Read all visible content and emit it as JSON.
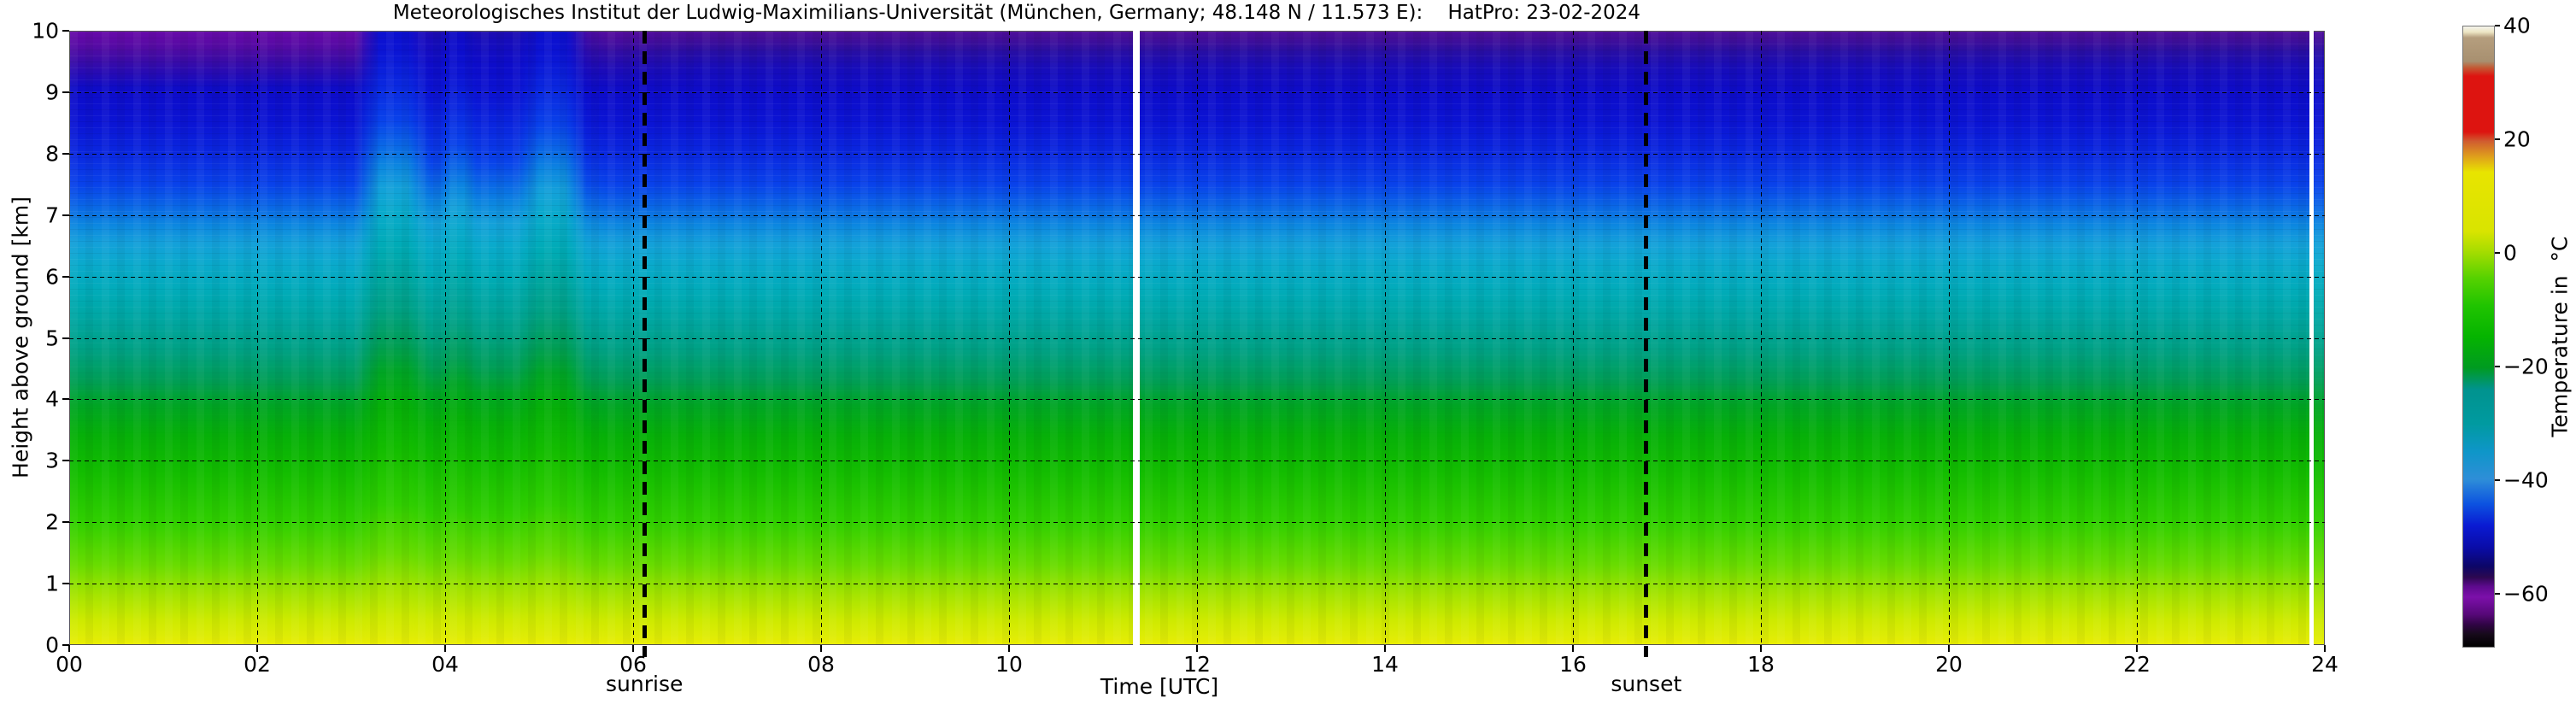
{
  "title": "Meteorologisches Institut der Ludwig-Maximilians-Universität (München, Germany; 48.148 N / 11.573 E):    HatPro: 23-02-2024",
  "axes": {
    "x": {
      "label": "Time [UTC]",
      "range": [
        0,
        24
      ],
      "ticks": [
        {
          "v": 0,
          "label": "00"
        },
        {
          "v": 2,
          "label": "02"
        },
        {
          "v": 4,
          "label": "04"
        },
        {
          "v": 6,
          "label": "06"
        },
        {
          "v": 8,
          "label": "08"
        },
        {
          "v": 10,
          "label": "10"
        },
        {
          "v": 12,
          "label": "12"
        },
        {
          "v": 14,
          "label": "14"
        },
        {
          "v": 16,
          "label": "16"
        },
        {
          "v": 18,
          "label": "18"
        },
        {
          "v": 20,
          "label": "20"
        },
        {
          "v": 22,
          "label": "22"
        },
        {
          "v": 24,
          "label": "24"
        }
      ]
    },
    "y": {
      "label": "Height above ground [km]",
      "range": [
        0,
        10
      ],
      "ticks": [
        {
          "v": 0,
          "label": "0"
        },
        {
          "v": 1,
          "label": "1"
        },
        {
          "v": 2,
          "label": "2"
        },
        {
          "v": 3,
          "label": "3"
        },
        {
          "v": 4,
          "label": "4"
        },
        {
          "v": 5,
          "label": "5"
        },
        {
          "v": 6,
          "label": "6"
        },
        {
          "v": 7,
          "label": "7"
        },
        {
          "v": 8,
          "label": "8"
        },
        {
          "v": 9,
          "label": "9"
        },
        {
          "v": 10,
          "label": "10"
        }
      ]
    }
  },
  "colorbar": {
    "label": "Temperature in  °C",
    "range": [
      -69.5,
      40
    ],
    "ticks": [
      {
        "v": 40,
        "label": "40"
      },
      {
        "v": 20,
        "label": "20"
      },
      {
        "v": 0,
        "label": "0"
      },
      {
        "v": -20,
        "label": "−20"
      },
      {
        "v": -40,
        "label": "−40"
      },
      {
        "v": -60,
        "label": "−60"
      }
    ]
  },
  "annotations": {
    "sunrise": {
      "label": "sunrise",
      "hour": 6.12
    },
    "sunset": {
      "label": "sunset",
      "hour": 16.78
    },
    "data_gap_hours": [
      11.35,
      23.87
    ]
  },
  "chart_data": {
    "type": "heatmap",
    "title": "Meteorologisches Institut der Ludwig-Maximilians-Universität (München, Germany; 48.148 N / 11.573 E):    HatPro: 23-02-2024",
    "xlabel": "Time [UTC]",
    "ylabel": "Height above ground [km]",
    "x_range_hours_utc": [
      0,
      24
    ],
    "y_range_km": [
      0,
      10
    ],
    "color_scale": {
      "label": "Temperature in  °C",
      "min": -69.5,
      "max": 40
    },
    "representative_profile": {
      "height_km": [
        0,
        1,
        2,
        3,
        4,
        5,
        6,
        7,
        8,
        9,
        10
      ],
      "temperature_c": [
        11,
        4,
        -4,
        -11,
        -18,
        -25,
        -31,
        -38,
        -46,
        -53,
        -58
      ]
    },
    "features": [
      "near-steady horizontal temperature layering all day: ~10 °C at the surface (yellow) decreasing to ~−58 °C at 10 km (indigo/purple)",
      "warm bulges aloft (isotherms lifted ~1 km) around 03:30 and 05:10 UTC, weaker one near 04:10 UTC",
      "enhanced purple (coldest) cap above ~9.5 km during 00:00–06:00 UTC",
      "white vertical data-gap stripes near 11:21 and 23:52 UTC",
      "sunrise marked at ~06:07 UTC, sunset at ~16:47 UTC (thick dashed lines)",
      "dashed grid every 1 km and every 2 h"
    ],
    "legend_position": "right colorbar",
    "grid": true
  }
}
